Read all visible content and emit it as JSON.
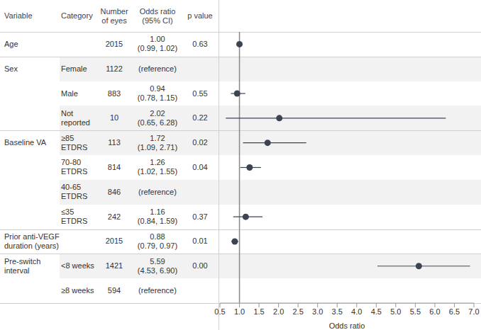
{
  "chart_data": {
    "type": "forest",
    "columns": [
      "Variable",
      "Category",
      "Number of eyes",
      "Odds ratio (95% CI)",
      "p value"
    ],
    "x_label": "Odds ratio",
    "xlim": [
      0.5,
      7.0
    ],
    "xticks": [
      0.5,
      {
        "value": 1,
        "label": "1.0"
      },
      1.5,
      {
        "value": 2,
        "label": "2.0"
      },
      2.5,
      {
        "value": 3,
        "label": "3.0"
      },
      3.5,
      {
        "value": 4,
        "label": "4.0"
      },
      4.5,
      {
        "value": 5,
        "label": "5.0"
      },
      5.5,
      {
        "value": 6,
        "label": "6.0"
      },
      6.5,
      {
        "value": 7,
        "label": "7.0"
      }
    ],
    "reference_value": 1,
    "color": "#3d4451",
    "groups": [
      {
        "variable": "Age",
        "rows": [
          {
            "category": null,
            "n": 2015,
            "or": 1.0,
            "ci": [
              0.99,
              1.02
            ],
            "or_text": "1.00",
            "ci_text": "(0.99, 1.02)",
            "p_text": "0.63"
          }
        ]
      },
      {
        "variable": "Sex",
        "rows": [
          {
            "category": "Female",
            "n": 1122,
            "or": null,
            "ci": null,
            "or_text": "(reference)",
            "ci_text": null,
            "p_text": null
          },
          {
            "category": "Male",
            "n": 883,
            "or": 0.94,
            "ci": [
              0.78,
              1.15
            ],
            "or_text": "0.94",
            "ci_text": "(0.78, 1.15)",
            "p_text": "0.55"
          },
          {
            "category": "Not reported",
            "n": 10,
            "or": 2.02,
            "ci": [
              0.65,
              6.28
            ],
            "or_text": "2.02",
            "ci_text": "(0.65, 6.28)",
            "p_text": "0.22"
          }
        ]
      },
      {
        "variable": "Baseline VA",
        "rows": [
          {
            "category": "≥85 ETDRS",
            "n": 113,
            "or": 1.72,
            "ci": [
              1.09,
              2.71
            ],
            "or_text": "1.72",
            "ci_text": "(1.09, 2.71)",
            "p_text": "0.02"
          },
          {
            "category": "70-80 ETDRS",
            "n": 814,
            "or": 1.26,
            "ci": [
              1.02,
              1.55
            ],
            "or_text": "1.26",
            "ci_text": "(1.02, 1.55)",
            "p_text": "0.04"
          },
          {
            "category": "40-65 ETDRS",
            "n": 846,
            "or": null,
            "ci": null,
            "or_text": "(reference)",
            "ci_text": null,
            "p_text": null
          },
          {
            "category": "≤35 ETDRS",
            "n": 242,
            "or": 1.16,
            "ci": [
              0.84,
              1.59
            ],
            "or_text": "1.16",
            "ci_text": "(0.84, 1.59)",
            "p_text": "0.37"
          }
        ]
      },
      {
        "variable": "Prior anti-VEGF duration (years)",
        "rows": [
          {
            "category": null,
            "n": 2015,
            "or": 0.88,
            "ci": [
              0.79,
              0.97
            ],
            "or_text": "0.88",
            "ci_text": "(0.79, 0.97)",
            "p_text": "0.01"
          }
        ]
      },
      {
        "variable": "Pre-switch interval",
        "rows": [
          {
            "category": "<8 weeks",
            "n": 1421,
            "or": 5.59,
            "ci": [
              4.53,
              6.9
            ],
            "or_text": "5.59",
            "ci_text": "(4.53, 6.90)",
            "p_text": "0.00"
          },
          {
            "category": "≥8 weeks",
            "n": 594,
            "or": null,
            "ci": null,
            "or_text": "(reference)",
            "ci_text": null,
            "p_text": null
          }
        ]
      }
    ]
  }
}
